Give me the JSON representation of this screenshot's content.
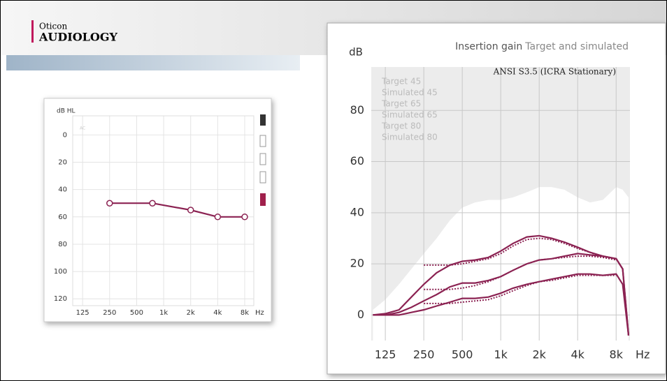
{
  "header": {
    "brand": "Oticon",
    "product": "AUDIOLOGY"
  },
  "chart_data": [
    {
      "type": "line",
      "ylabel": "dB HL",
      "annotation": "AC",
      "x_unit": "Hz",
      "log_x": true,
      "grid": true,
      "x": [
        250,
        750,
        2000,
        4000,
        8000
      ],
      "series": [
        {
          "color": "#8b2252",
          "values": [
            50,
            50,
            55,
            60,
            60
          ]
        }
      ],
      "xlim": [
        97,
        10100
      ],
      "ylim": [
        125,
        -14
      ],
      "xticks": [
        125,
        250,
        500,
        {
          "value": 1000,
          "label": "1k"
        },
        {
          "value": 2000,
          "label": "2k"
        },
        {
          "value": 4000,
          "label": "4k"
        },
        {
          "value": 8000,
          "label": "8k"
        }
      ],
      "yticks": [
        0,
        20,
        40,
        60,
        80,
        100,
        120
      ]
    },
    {
      "type": "line",
      "title": "Insertion gain",
      "subtitle": "Target and simulated",
      "ylabel": "dB",
      "annotation": "ANSI S3.5 (ICRA Stationary)",
      "x_unit": "Hz",
      "log_x": true,
      "grid": true,
      "x": [
        100,
        125,
        160,
        200,
        250,
        315,
        400,
        500,
        630,
        800,
        1000,
        1250,
        1600,
        2000,
        2500,
        3150,
        4000,
        5000,
        6300,
        8000,
        9000,
        10000
      ],
      "area": {
        "color": "#ffffff",
        "background": "#ececec",
        "values": [
          2,
          6,
          12,
          18,
          24,
          30,
          37,
          42,
          44,
          45,
          45,
          46,
          48,
          50,
          50,
          49,
          46,
          44,
          45,
          50,
          49,
          46
        ]
      },
      "series": [
        {
          "name": "Target 45",
          "color": "#8b2252",
          "dash": true,
          "values": [
            null,
            null,
            null,
            null,
            19.5,
            19.5,
            19.5,
            20,
            21,
            22,
            24,
            27,
            29.5,
            30,
            29.5,
            28,
            26,
            24.5,
            22.5,
            21.5,
            null,
            null
          ]
        },
        {
          "name": "Simulated 45",
          "color": "#8b2252",
          "values": [
            0,
            0.5,
            2,
            7,
            12,
            16.5,
            19.5,
            21,
            21.5,
            22.5,
            25,
            28,
            30.5,
            31,
            30,
            28.5,
            26.5,
            24.5,
            23,
            22,
            18,
            -8
          ]
        },
        {
          "name": "Target 65",
          "color": "#8b2252",
          "dash": true,
          "values": [
            null,
            null,
            null,
            null,
            10,
            10,
            10,
            10.5,
            11.5,
            13,
            15,
            17.5,
            20,
            21.5,
            22,
            22.5,
            23,
            23,
            22.5,
            22,
            null,
            null
          ]
        },
        {
          "name": "Simulated 65",
          "color": "#8b2252",
          "values": [
            0,
            0,
            1,
            3,
            5.5,
            8,
            11,
            12.5,
            12.5,
            13.5,
            15,
            17.5,
            20,
            21.5,
            22,
            23,
            24,
            23.5,
            23,
            22,
            18,
            -8
          ]
        },
        {
          "name": "Target 80",
          "color": "#8b2252",
          "dash": true,
          "values": [
            null,
            null,
            null,
            null,
            4.5,
            4.5,
            4.5,
            5,
            5.5,
            6,
            7.5,
            9.5,
            11.5,
            13,
            13.5,
            14.5,
            15.5,
            15.5,
            15.5,
            15.5,
            null,
            null
          ]
        },
        {
          "name": "Simulated 80",
          "color": "#8b2252",
          "values": [
            0,
            0,
            0,
            1,
            2,
            3.5,
            5,
            6.5,
            6.5,
            7,
            8.5,
            10.5,
            12,
            13,
            14,
            15,
            16,
            16,
            15.5,
            16,
            12,
            -8
          ]
        }
      ],
      "xlim": [
        97,
        10260
      ],
      "ylim": [
        -10,
        97
      ],
      "xticks": [
        125,
        250,
        500,
        {
          "value": 1000,
          "label": "1k"
        },
        {
          "value": 2000,
          "label": "2k"
        },
        {
          "value": 4000,
          "label": "4k"
        },
        {
          "value": 8000,
          "label": "8k"
        }
      ],
      "yticks": [
        0,
        20,
        40,
        60,
        80
      ]
    }
  ]
}
